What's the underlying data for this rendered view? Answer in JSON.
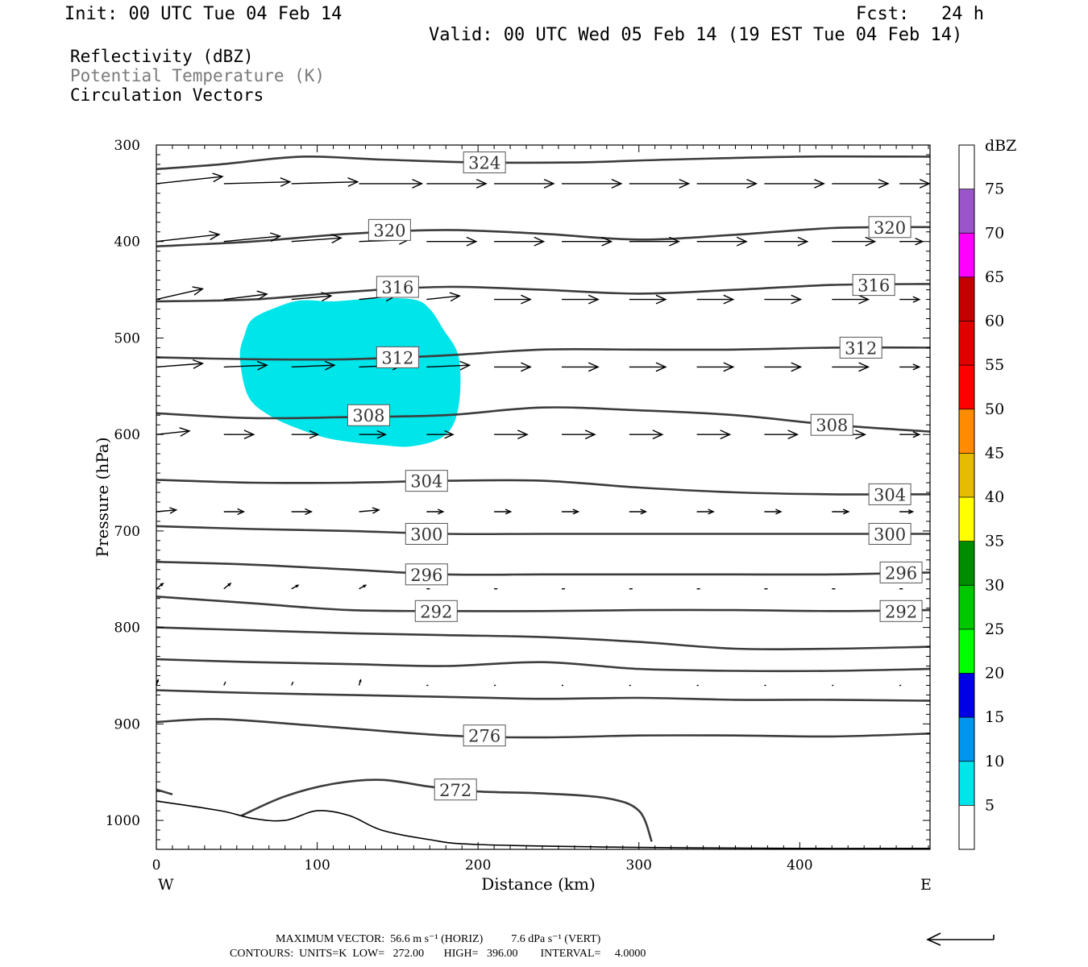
{
  "header": {
    "init": "Init: 00 UTC Tue 04 Feb 14",
    "fcst": "Fcst:   24 h",
    "valid": "Valid: 00 UTC Wed 05 Feb 14 (19 EST Tue 04 Feb 14)"
  },
  "fields": {
    "reflectivity": "Reflectivity (dBZ)",
    "theta": "Potential Temperature (K)",
    "vectors": "Circulation Vectors"
  },
  "chart_data": {
    "type": "contour",
    "xlabel": "Distance (km)",
    "ylabel": "Pressure (hPa)",
    "xlim": [
      0,
      481
    ],
    "ylim": [
      300,
      1030
    ],
    "y_inverted": true,
    "xticks": [
      0,
      100,
      200,
      300,
      400
    ],
    "yticks": [
      300,
      400,
      500,
      600,
      700,
      800,
      900,
      1000
    ],
    "x_end_labels": {
      "left": "W",
      "right": "E"
    },
    "theta_contours": [
      {
        "value": 324,
        "label": "324",
        "points": [
          [
            0,
            325
          ],
          [
            40,
            320
          ],
          [
            90,
            312
          ],
          [
            140,
            315
          ],
          [
            200,
            318
          ],
          [
            260,
            318
          ],
          [
            320,
            315
          ],
          [
            400,
            312
          ],
          [
            481,
            312
          ]
        ],
        "label_at": [
          [
            204,
            318
          ]
        ]
      },
      {
        "value": 320,
        "label": "320",
        "points": [
          [
            0,
            405
          ],
          [
            60,
            400
          ],
          [
            120,
            392
          ],
          [
            180,
            388
          ],
          [
            240,
            392
          ],
          [
            300,
            398
          ],
          [
            360,
            393
          ],
          [
            420,
            386
          ],
          [
            481,
            385
          ]
        ],
        "label_at": [
          [
            145,
            388
          ],
          [
            456,
            385
          ]
        ]
      },
      {
        "value": 316,
        "label": "316",
        "points": [
          [
            0,
            462
          ],
          [
            60,
            460
          ],
          [
            120,
            452
          ],
          [
            180,
            447
          ],
          [
            240,
            450
          ],
          [
            300,
            454
          ],
          [
            360,
            450
          ],
          [
            420,
            445
          ],
          [
            481,
            444
          ]
        ],
        "label_at": [
          [
            150,
            447
          ],
          [
            446,
            445
          ]
        ]
      },
      {
        "value": 312,
        "label": "312",
        "points": [
          [
            0,
            520
          ],
          [
            60,
            522
          ],
          [
            120,
            522
          ],
          [
            180,
            518
          ],
          [
            240,
            512
          ],
          [
            300,
            512
          ],
          [
            360,
            512
          ],
          [
            420,
            510
          ],
          [
            481,
            510
          ]
        ],
        "label_at": [
          [
            150,
            520
          ],
          [
            438,
            510
          ]
        ]
      },
      {
        "value": 308,
        "label": "308",
        "points": [
          [
            0,
            578
          ],
          [
            60,
            583
          ],
          [
            120,
            582
          ],
          [
            180,
            580
          ],
          [
            240,
            572
          ],
          [
            300,
            575
          ],
          [
            360,
            580
          ],
          [
            420,
            590
          ],
          [
            481,
            597
          ]
        ],
        "label_at": [
          [
            132,
            580
          ],
          [
            420,
            590
          ]
        ]
      },
      {
        "value": 304,
        "label": "304",
        "points": [
          [
            0,
            647
          ],
          [
            60,
            650
          ],
          [
            120,
            650
          ],
          [
            180,
            648
          ],
          [
            240,
            648
          ],
          [
            300,
            655
          ],
          [
            360,
            660
          ],
          [
            420,
            662
          ],
          [
            481,
            662
          ]
        ],
        "label_at": [
          [
            168,
            648
          ],
          [
            456,
            662
          ]
        ]
      },
      {
        "value": 300,
        "label": "300",
        "points": [
          [
            0,
            695
          ],
          [
            60,
            698
          ],
          [
            120,
            700
          ],
          [
            180,
            703
          ],
          [
            240,
            703
          ],
          [
            300,
            703
          ],
          [
            360,
            703
          ],
          [
            420,
            703
          ],
          [
            481,
            703
          ]
        ],
        "label_at": [
          [
            168,
            703
          ],
          [
            456,
            703
          ]
        ]
      },
      {
        "value": 296,
        "label": "296",
        "points": [
          [
            0,
            732
          ],
          [
            60,
            735
          ],
          [
            120,
            740
          ],
          [
            180,
            745
          ],
          [
            240,
            745
          ],
          [
            300,
            745
          ],
          [
            360,
            745
          ],
          [
            420,
            745
          ],
          [
            481,
            743
          ]
        ],
        "label_at": [
          [
            168,
            745
          ],
          [
            463,
            743
          ]
        ]
      },
      {
        "value": 292,
        "label": "292",
        "points": [
          [
            0,
            768
          ],
          [
            60,
            775
          ],
          [
            120,
            782
          ],
          [
            180,
            783
          ],
          [
            240,
            783
          ],
          [
            300,
            782
          ],
          [
            360,
            782
          ],
          [
            420,
            783
          ],
          [
            481,
            782
          ]
        ],
        "label_at": [
          [
            174,
            783
          ],
          [
            463,
            783
          ]
        ]
      },
      {
        "value": 288,
        "label": "",
        "points": [
          [
            0,
            800
          ],
          [
            60,
            803
          ],
          [
            120,
            806
          ],
          [
            180,
            808
          ],
          [
            240,
            810
          ],
          [
            300,
            815
          ],
          [
            360,
            822
          ],
          [
            420,
            822
          ],
          [
            481,
            820
          ]
        ],
        "label_at": []
      },
      {
        "value": 284,
        "label": "",
        "points": [
          [
            0,
            833
          ],
          [
            60,
            836
          ],
          [
            120,
            838
          ],
          [
            180,
            840
          ],
          [
            240,
            836
          ],
          [
            300,
            843
          ],
          [
            360,
            845
          ],
          [
            420,
            845
          ],
          [
            481,
            843
          ]
        ],
        "label_at": []
      },
      {
        "value": 280,
        "label": "",
        "points": [
          [
            0,
            865
          ],
          [
            60,
            868
          ],
          [
            120,
            870
          ],
          [
            180,
            872
          ],
          [
            240,
            874
          ],
          [
            300,
            873
          ],
          [
            360,
            875
          ],
          [
            420,
            875
          ],
          [
            481,
            876
          ]
        ],
        "label_at": []
      },
      {
        "value": 276,
        "label": "276",
        "points": [
          [
            0,
            898
          ],
          [
            40,
            895
          ],
          [
            100,
            902
          ],
          [
            180,
            912
          ],
          [
            240,
            914
          ],
          [
            300,
            912
          ],
          [
            360,
            912
          ],
          [
            420,
            913
          ],
          [
            481,
            910
          ]
        ],
        "label_at": [
          [
            204,
            912
          ]
        ]
      },
      {
        "value": 272,
        "label": "272",
        "points": [
          [
            53,
            995
          ],
          [
            80,
            975
          ],
          [
            110,
            962
          ],
          [
            140,
            958
          ],
          [
            170,
            965
          ],
          [
            200,
            970
          ],
          [
            240,
            972
          ],
          [
            280,
            977
          ],
          [
            300,
            990
          ],
          [
            308,
            1022
          ]
        ],
        "label_at": [
          [
            186,
            968
          ]
        ]
      }
    ],
    "terrain_line": {
      "points": [
        [
          0,
          968
        ],
        [
          10,
          973
        ]
      ]
    },
    "ground": {
      "points": [
        [
          0,
          980
        ],
        [
          40,
          990
        ],
        [
          60,
          998
        ],
        [
          80,
          1000
        ],
        [
          100,
          990
        ],
        [
          120,
          995
        ],
        [
          140,
          1010
        ],
        [
          170,
          1020
        ],
        [
          200,
          1025
        ],
        [
          300,
          1028
        ],
        [
          400,
          1029
        ],
        [
          481,
          1029
        ]
      ]
    },
    "reflectivity_region": {
      "dbz_min": 5,
      "dbz_max": 10,
      "color": "#00e5ea",
      "outline": [
        [
          55,
          496
        ],
        [
          60,
          480
        ],
        [
          75,
          468
        ],
        [
          90,
          461
        ],
        [
          110,
          462
        ],
        [
          135,
          459
        ],
        [
          160,
          460
        ],
        [
          170,
          470
        ],
        [
          178,
          490
        ],
        [
          188,
          520
        ],
        [
          188,
          570
        ],
        [
          180,
          600
        ],
        [
          160,
          612
        ],
        [
          140,
          611
        ],
        [
          110,
          605
        ],
        [
          90,
          595
        ],
        [
          70,
          580
        ],
        [
          57,
          560
        ],
        [
          52,
          520
        ]
      ]
    },
    "colorbar": {
      "unit": "dBZ",
      "levels": [
        "5",
        "10",
        "15",
        "20",
        "25",
        "30",
        "35",
        "40",
        "45",
        "50",
        "55",
        "60",
        "65",
        "70",
        "75"
      ],
      "colors": [
        "#00e5ea",
        "#0096f0",
        "#0000e6",
        "#00ff00",
        "#00c800",
        "#008c00",
        "#ffff00",
        "#e6bc00",
        "#ff8c00",
        "#ff0000",
        "#e00000",
        "#c40000",
        "#ff00ff",
        "#9955c9",
        "#ffffff"
      ],
      "bottom_color": "#ffffff"
    },
    "vector_rows": [
      {
        "p": 340,
        "x": [
          0,
          42,
          84,
          126,
          168,
          210,
          252,
          294,
          336,
          378,
          420,
          462
        ],
        "u": [
          40,
          40,
          40,
          38,
          36,
          36,
          36,
          36,
          36,
          36,
          34,
          18
        ],
        "w": [
          -4,
          -1,
          -1,
          0,
          0,
          0,
          0,
          0,
          0,
          0,
          0,
          0
        ]
      },
      {
        "p": 400,
        "x": [
          0,
          42,
          84,
          126,
          168,
          210,
          252,
          294,
          336,
          378,
          420,
          462
        ],
        "u": [
          38,
          34,
          30,
          30,
          30,
          30,
          30,
          30,
          30,
          26,
          26,
          14
        ],
        "w": [
          -4,
          -3,
          -2,
          -1,
          0,
          0,
          0,
          0,
          0,
          0,
          0,
          0
        ]
      },
      {
        "p": 460,
        "x": [
          0,
          42,
          84,
          126,
          168,
          210,
          252,
          294,
          336,
          378,
          420,
          462
        ],
        "u": [
          28,
          26,
          24,
          22,
          20,
          22,
          22,
          22,
          22,
          22,
          22,
          12
        ],
        "w": [
          -6,
          -3,
          -2,
          -2,
          -2,
          0,
          0,
          0,
          0,
          0,
          0,
          0
        ]
      },
      {
        "p": 530,
        "x": [
          0,
          42,
          84,
          126,
          168,
          210,
          252,
          294,
          336,
          378,
          420,
          462
        ],
        "u": [
          28,
          26,
          26,
          26,
          26,
          22,
          22,
          22,
          22,
          22,
          22,
          12
        ],
        "w": [
          -2,
          -1,
          -1,
          -1,
          -1,
          0,
          0,
          0,
          0,
          0,
          0,
          0
        ]
      },
      {
        "p": 600,
        "x": [
          0,
          42,
          84,
          126,
          168,
          210,
          252,
          294,
          336,
          378,
          420,
          462
        ],
        "u": [
          20,
          18,
          16,
          16,
          16,
          20,
          20,
          20,
          20,
          20,
          20,
          12
        ],
        "w": [
          -2,
          0,
          0,
          0,
          0,
          0,
          0,
          0,
          0,
          0,
          0,
          0
        ]
      },
      {
        "p": 680,
        "x": [
          0,
          42,
          84,
          126,
          168,
          210,
          252,
          294,
          336,
          378,
          420,
          462
        ],
        "u": [
          12,
          12,
          12,
          12,
          10,
          10,
          10,
          10,
          10,
          10,
          10,
          8
        ],
        "w": [
          -1,
          0,
          0,
          -1,
          0,
          0,
          0,
          0,
          0,
          0,
          0,
          0
        ]
      },
      {
        "p": 760,
        "x": [
          0,
          42,
          84,
          126,
          168,
          210,
          252,
          294,
          336,
          378,
          420,
          462
        ],
        "u": [
          4,
          4,
          4,
          4,
          2,
          2,
          2,
          2,
          2,
          2,
          2,
          2
        ],
        "w": [
          -3,
          -3,
          -2,
          -2,
          0,
          0,
          0,
          0,
          0,
          0,
          0,
          0
        ]
      },
      {
        "p": 860,
        "x": [
          0,
          42,
          84,
          126,
          168,
          210,
          252,
          294,
          336,
          378,
          420,
          462
        ],
        "u": [
          1,
          1,
          1,
          1,
          1,
          1,
          1,
          1,
          1,
          1,
          1,
          1
        ],
        "w": [
          -3,
          -2,
          -2,
          -3,
          0,
          0,
          0,
          0,
          0,
          0,
          0,
          0
        ]
      }
    ],
    "footer": {
      "max_vector": "MAXIMUM VECTOR:  56.6 m s⁻¹ (HORIZ)          7.6 dPa s⁻¹ (VERT)",
      "contours": "CONTOURS:  UNITS=K  LOW=   272.00       HIGH=   396.00        INTERVAL=     4.0000"
    }
  }
}
